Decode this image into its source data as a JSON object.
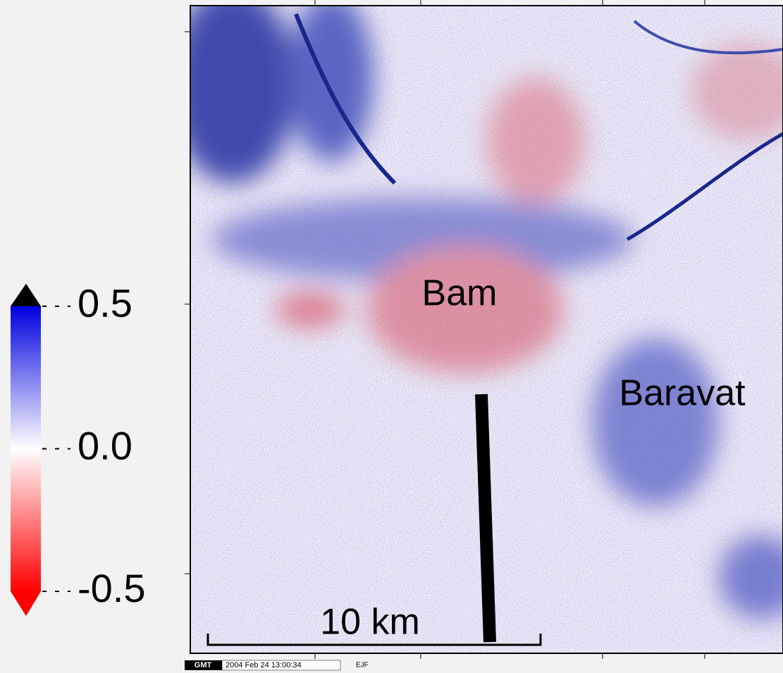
{
  "colorbar": {
    "lim": [
      -0.5,
      0.5
    ],
    "ticks": [
      0.5,
      {
        "value": 0,
        "label": "0.0"
      },
      -0.5
    ]
  },
  "places": [
    "Bam",
    "Baravat"
  ],
  "scale_bar": "10 km",
  "footer": {
    "logo": "GMT",
    "timestamp": "2004 Feb 24 13:00:34",
    "author": "EJF"
  }
}
